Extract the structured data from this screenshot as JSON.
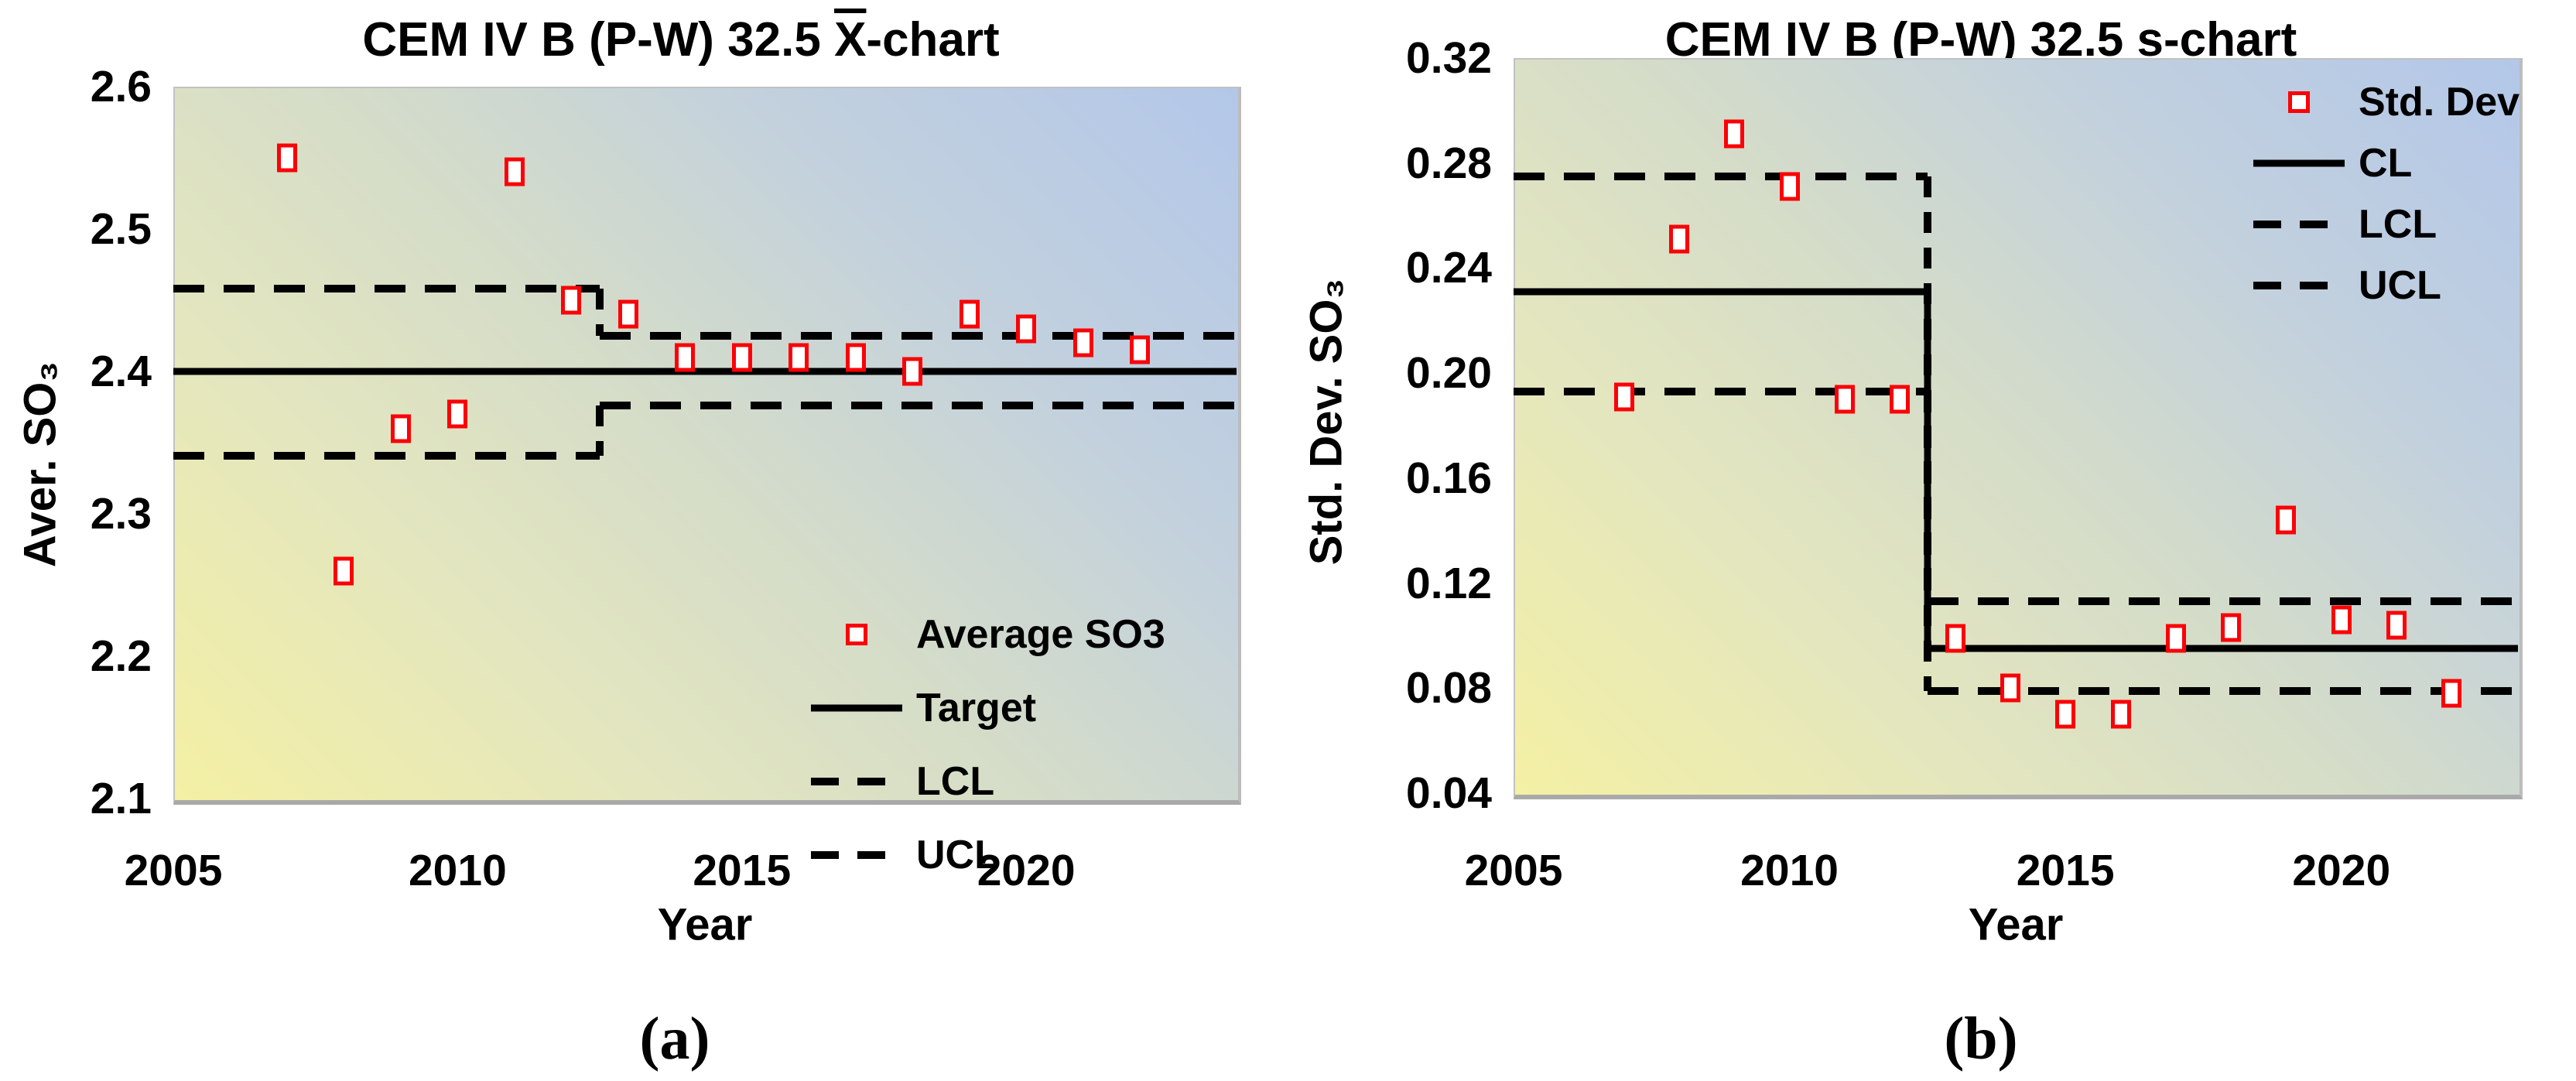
{
  "figure": {
    "caption_a": "(a)",
    "caption_b": "(b)",
    "marker_color": "#fb0006",
    "line_color": "#000000"
  },
  "chart_data": [
    {
      "type": "scatter",
      "title": "CEM IV B (P-W) 32.5 X̅-chart",
      "title_parts": {
        "pre": "CEM IV B (P-W) 32.5 ",
        "x": "X",
        "post": "-chart"
      },
      "xlabel": "Year",
      "ylabel": "Aver. SO₃",
      "caption": "(a)",
      "xlim": [
        2005,
        2023.7
      ],
      "ylim": [
        2.1,
        2.6
      ],
      "xticks": [
        "2005",
        "2010",
        "2015",
        "2020"
      ],
      "yticks": [
        "2.1",
        "2.2",
        "2.3",
        "2.4",
        "2.5",
        "2.6"
      ],
      "grid": false,
      "legend_position": "bottom-right",
      "series": [
        {
          "name": "Average SO3",
          "x": [
            2007,
            2008,
            2009,
            2010,
            2011,
            2012,
            2013,
            2014,
            2015,
            2016,
            2017,
            2018,
            2019,
            2020,
            2021,
            2022
          ],
          "y": [
            2.55,
            2.26,
            2.36,
            2.37,
            2.54,
            2.45,
            2.44,
            2.41,
            2.41,
            2.41,
            2.41,
            2.4,
            2.44,
            2.43,
            2.42,
            2.415
          ]
        }
      ],
      "control_lines": [
        {
          "name": "Target",
          "style": "solid",
          "segments": [
            {
              "x1": 2005,
              "x2": 2023.7,
              "y": 2.4
            }
          ]
        },
        {
          "name": "LCL",
          "style": "dashed",
          "segments": [
            {
              "x1": 2005,
              "x2": 2012.5,
              "y": 2.341
            },
            {
              "x1": 2012.5,
              "x2": 2023.7,
              "y": 2.376
            }
          ]
        },
        {
          "name": "UCL",
          "style": "dashed",
          "segments": [
            {
              "x1": 2005,
              "x2": 2012.5,
              "y": 2.458
            },
            {
              "x1": 2012.5,
              "x2": 2023.7,
              "y": 2.425
            }
          ]
        }
      ],
      "legend_items": [
        {
          "label": "Average SO3",
          "type": "marker"
        },
        {
          "label": "Target",
          "type": "solid"
        },
        {
          "label": "LCL",
          "type": "dashed"
        },
        {
          "label": "UCL",
          "type": "dashed"
        }
      ]
    },
    {
      "type": "scatter",
      "title": "CEM IV B (P-W) 32.5 s-chart",
      "xlabel": "Year",
      "ylabel": "Std. Dev. SO₃",
      "caption": "(b)",
      "xlim": [
        2005,
        2023.2
      ],
      "ylim": [
        0.04,
        0.32
      ],
      "xticks": [
        "2005",
        "2010",
        "2015",
        "2020"
      ],
      "yticks": [
        "0.04",
        "0.08",
        "0.12",
        "0.16",
        "0.20",
        "0.24",
        "0.28",
        "0.32"
      ],
      "grid": false,
      "legend_position": "top-right",
      "series": [
        {
          "name": "Std. Dev",
          "x": [
            2007,
            2008,
            2009,
            2010,
            2011,
            2012,
            2013,
            2014,
            2015,
            2016,
            2017,
            2018,
            2019,
            2020,
            2021,
            2022
          ],
          "y": [
            0.191,
            0.251,
            0.291,
            0.271,
            0.19,
            0.19,
            0.099,
            0.08,
            0.07,
            0.07,
            0.099,
            0.103,
            0.144,
            0.106,
            0.104,
            0.078
          ]
        }
      ],
      "control_lines": [
        {
          "name": "CL",
          "style": "solid",
          "segments": [
            {
              "x1": 2005,
              "x2": 2012.5,
              "y": 0.231
            },
            {
              "x1": 2012.5,
              "x2": 2023.2,
              "y": 0.095
            }
          ]
        },
        {
          "name": "LCL",
          "style": "dashed",
          "segments": [
            {
              "x1": 2005,
              "x2": 2012.5,
              "y": 0.193
            },
            {
              "x1": 2012.5,
              "x2": 2023.2,
              "y": 0.079
            }
          ]
        },
        {
          "name": "UCL",
          "style": "dashed",
          "segments": [
            {
              "x1": 2005,
              "x2": 2012.5,
              "y": 0.275
            },
            {
              "x1": 2012.5,
              "x2": 2023.2,
              "y": 0.113
            }
          ]
        }
      ],
      "legend_items": [
        {
          "label": "Std. Dev",
          "type": "marker"
        },
        {
          "label": "CL",
          "type": "solid"
        },
        {
          "label": "LCL",
          "type": "dashed"
        },
        {
          "label": "UCL",
          "type": "dashed"
        }
      ]
    }
  ]
}
